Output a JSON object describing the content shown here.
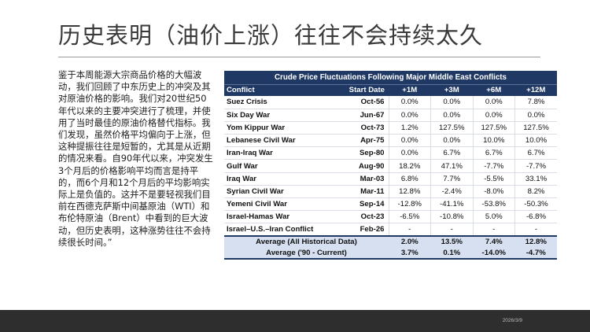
{
  "slide": {
    "title": "历史表明（油价上涨）往往不会持续太久",
    "body": "鉴于本周能源大宗商品价格的大幅波动，我们回顾了中东历史上的冲突及其对原油价格的影响。我们对20世纪50年代以来的主要冲突进行了梳理，并使用了当时最佳的原油价格替代指标。我们发现，虽然价格平均偏向于上涨，但这种提振往往是短暂的，尤其是从近期的情况来看。自90年代以来，冲突发生3个月后的价格影响平均而言是持平的，而6个月和12个月后的平均影响实际上是负值的。这并不是要轻视我们目前在西德克萨斯中间基原油（WTI）和布伦特原油（Brent）中看到的巨大波动，但历史表明，这种涨势往往不会持续很长时间。”",
    "footer_date": "2026/3/9"
  },
  "table": {
    "title": "Crude Price Fluctuations Following Major Middle East Conflicts",
    "headers": [
      "Conflict",
      "Start Date",
      "+1M",
      "+3M",
      "+6M",
      "+12M"
    ],
    "rows": [
      {
        "conflict": "Suez Crisis",
        "date": "Oct-56",
        "m1": "0.0%",
        "m3": "0.0%",
        "m6": "0.0%",
        "m12": "7.8%"
      },
      {
        "conflict": "Six Day War",
        "date": "Jun-67",
        "m1": "0.0%",
        "m3": "0.0%",
        "m6": "0.0%",
        "m12": "0.0%"
      },
      {
        "conflict": "Yom Kippur War",
        "date": "Oct-73",
        "m1": "1.2%",
        "m3": "127.5%",
        "m6": "127.5%",
        "m12": "127.5%"
      },
      {
        "conflict": "Lebanese Civil War",
        "date": "Apr-75",
        "m1": "0.0%",
        "m3": "0.0%",
        "m6": "10.0%",
        "m12": "10.0%"
      },
      {
        "conflict": "Iran-Iraq War",
        "date": "Sep-80",
        "m1": "0.0%",
        "m3": "6.7%",
        "m6": "6.7%",
        "m12": "6.7%"
      },
      {
        "conflict": "Gulf War",
        "date": "Aug-90",
        "m1": "18.2%",
        "m3": "47.1%",
        "m6": "-7.7%",
        "m12": "-7.7%"
      },
      {
        "conflict": "Iraq War",
        "date": "Mar-03",
        "m1": "6.8%",
        "m3": "7.7%",
        "m6": "-5.5%",
        "m12": "33.1%"
      },
      {
        "conflict": "Syrian Civil War",
        "date": "Mar-11",
        "m1": "12.8%",
        "m3": "-2.4%",
        "m6": "-8.0%",
        "m12": "8.2%"
      },
      {
        "conflict": "Yemeni Civil War",
        "date": "Sep-14",
        "m1": "-12.8%",
        "m3": "-41.1%",
        "m6": "-53.8%",
        "m12": "-50.3%"
      },
      {
        "conflict": "Israel-Hamas War",
        "date": "Oct-23",
        "m1": "-6.5%",
        "m3": "-10.8%",
        "m6": "5.0%",
        "m12": "-6.8%"
      },
      {
        "conflict": "Israel–U.S.–Iran Conflict",
        "date": "Feb-26",
        "m1": "-",
        "m3": "-",
        "m6": "-",
        "m12": "-"
      }
    ],
    "averages": [
      {
        "label": "Average (All Historical Data)",
        "m1": "2.0%",
        "m3": "13.5%",
        "m6": "7.4%",
        "m12": "12.8%"
      },
      {
        "label": "Average ('90 - Current)",
        "m1": "3.7%",
        "m3": "0.1%",
        "m6": "-14.0%",
        "m12": "-4.7%"
      }
    ]
  },
  "colors": {
    "table_header": "#1f3864",
    "average_rows": "#d6e0f0",
    "footer_bar": "#2e2e2e"
  }
}
